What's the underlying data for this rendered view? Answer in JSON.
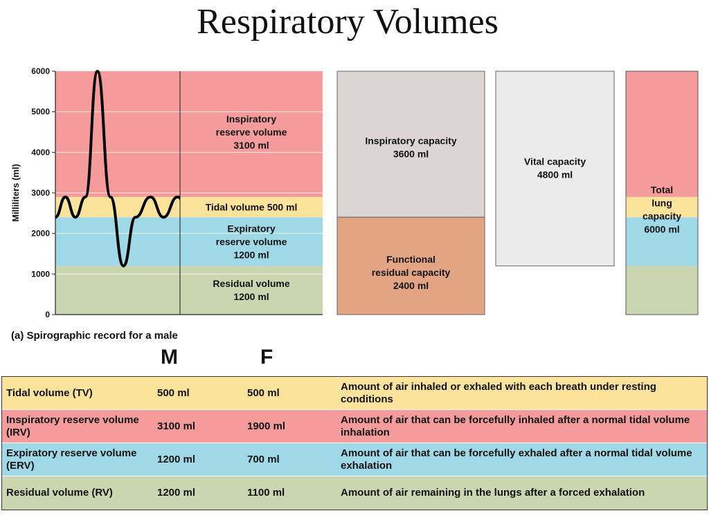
{
  "title": "Respiratory Volumes",
  "colors": {
    "irv": "#f59b9c",
    "tidal": "#fbe39b",
    "erv": "#9fd9e7",
    "residual": "#cad6b0",
    "inspiratory_capacity": "#ddd4d4",
    "frc": "#e3a484",
    "vital_capacity": "#ebebeb"
  },
  "chart_data": {
    "type": "area",
    "title": "",
    "caption": "(a) Spirographic record for a male",
    "ylabel": "Milliliters (ml)",
    "ylim": [
      0,
      6000
    ],
    "yticks": [
      "0",
      "1000",
      "2000",
      "3000",
      "4000",
      "5000",
      "6000"
    ],
    "grid": true,
    "bands": [
      {
        "name": "Residual volume",
        "value_label": "1200 ml",
        "from": 0,
        "to": 1200,
        "color": "#cad6b0"
      },
      {
        "name": "Expiratory reserve volume",
        "value_label": "1200 ml",
        "from": 1200,
        "to": 2400,
        "color": "#9fd9e7"
      },
      {
        "name": "Tidal volume",
        "value_label": "500 ml",
        "from": 2400,
        "to": 2900,
        "color": "#fbe39b"
      },
      {
        "name": "Inspiratory reserve volume",
        "value_label": "3100 ml",
        "from": 2900,
        "to": 6000,
        "color": "#f59b9c"
      }
    ],
    "band_labels": [
      {
        "lines": [
          "Inspiratory",
          "reserve volume",
          "3100 ml"
        ],
        "y": 4500
      },
      {
        "lines": [
          "Tidal volume 500 ml"
        ],
        "y": 2650
      },
      {
        "lines": [
          "Expiratory",
          "reserve volume",
          "1200 ml"
        ],
        "y": 1800
      },
      {
        "lines": [
          "Residual volume",
          "1200 ml"
        ],
        "y": 600
      }
    ],
    "trace": {
      "x": [
        0,
        0.1,
        0.2,
        0.3,
        0.42,
        0.55,
        0.68,
        0.8,
        0.95,
        1.08,
        1.22,
        1.35,
        1.5,
        1.64,
        1.8,
        1.95,
        2.1,
        2.24,
        2.38,
        2.52,
        2.67
      ],
      "y": [
        2400,
        2900,
        2400,
        2900,
        6000,
        2900,
        1200,
        2400,
        2900,
        2400,
        2900,
        2400,
        2900,
        2400,
        2900,
        2400,
        2400,
        2400,
        2400,
        2400,
        2400
      ]
    },
    "capacities": [
      {
        "name": "Inspiratory capacity",
        "lines": [
          "Inspiratory capacity",
          "3600 ml"
        ],
        "from": 2400,
        "to": 6000,
        "color": "#ddd4d4",
        "column": 0
      },
      {
        "name": "Functional residual capacity",
        "lines": [
          "Functional",
          "residual capacity",
          "2400 ml"
        ],
        "from": 0,
        "to": 2400,
        "color": "#e3a484",
        "column": 0
      },
      {
        "name": "Vital capacity",
        "lines": [
          "Vital capacity",
          "4800 ml"
        ],
        "from": 1200,
        "to": 6000,
        "color": "#ebebeb",
        "column": 1
      },
      {
        "name": "Total lung capacity",
        "lines": [
          "Total",
          "lung",
          "capacity",
          "6000 ml"
        ],
        "from": 0,
        "to": 6000,
        "color": "stacked",
        "column": 2
      }
    ]
  },
  "table": {
    "col_headers": [
      "M",
      "F"
    ],
    "rows": [
      {
        "name": "Tidal volume (TV)",
        "m": "500 ml",
        "f": "500 ml",
        "desc": "Amount of air inhaled or exhaled with each breath under resting conditions",
        "color": "#fbe39b"
      },
      {
        "name": "Inspiratory reserve volume (IRV)",
        "m": "3100 ml",
        "f": "1900 ml",
        "desc": "Amount of air that can be forcefully inhaled after a normal tidal volume inhalation",
        "color": "#f59b9c"
      },
      {
        "name": "Expiratory reserve volume (ERV)",
        "m": "1200 ml",
        "f": "700 ml",
        "desc": "Amount of air that can be forcefully exhaled after a normal tidal volume exhalation",
        "color": "#9fd9e7"
      },
      {
        "name": "Residual volume (RV)",
        "m": "1200 ml",
        "f": "1100 ml",
        "desc": "Amount of air remaining in the lungs after a forced exhalation",
        "color": "#cad6b0"
      }
    ]
  }
}
